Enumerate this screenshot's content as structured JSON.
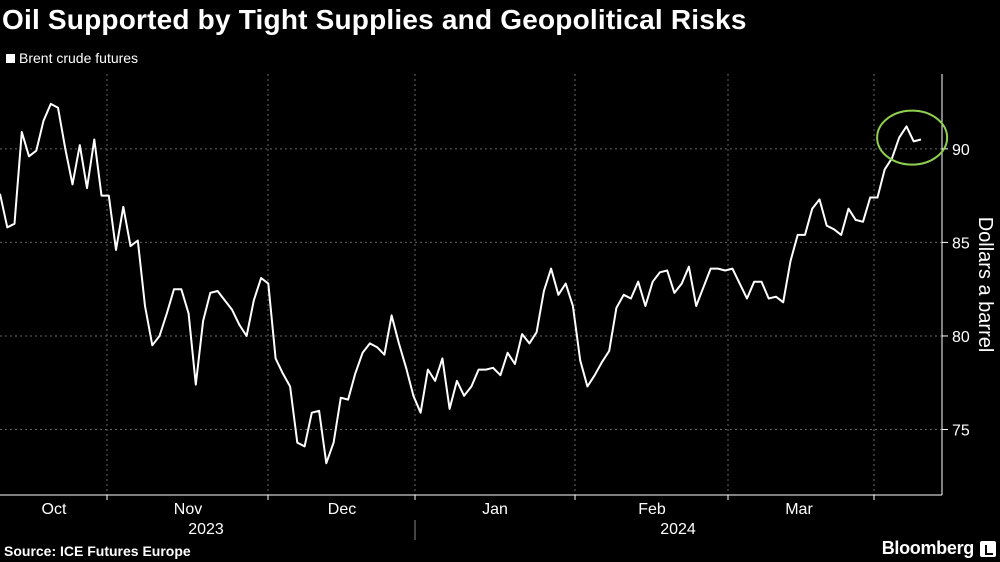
{
  "header": {
    "title": "Oil Supported by Tight Supplies and Geopolitical Risks"
  },
  "footer": {
    "source": "Source: ICE Futures Europe",
    "brand": "Bloomberg"
  },
  "chart_data": {
    "type": "line",
    "title": "Oil Supported by Tight Supplies and Geopolitical Risks",
    "ylabel": "Dollars a barrel",
    "ylim": [
      71.5,
      94
    ],
    "y_ticks": [
      75,
      80,
      85,
      90
    ],
    "y_axis_side": "right",
    "grid": true,
    "legend_position": "top-left",
    "x_month_labels": [
      "Oct",
      "Nov",
      "Dec",
      "Jan",
      "Feb",
      "Mar"
    ],
    "x_year_labels": [
      "2023",
      "2024"
    ],
    "colors": {
      "background": "#000000",
      "line": "#ffffff",
      "highlight_circle": "#8fd14f",
      "grid": "#666666"
    },
    "annotation": {
      "type": "circle",
      "around": "latest values"
    },
    "series": [
      {
        "name": "Brent crude futures",
        "values": [
          87.6,
          85.8,
          86.0,
          90.9,
          89.6,
          89.9,
          91.5,
          92.4,
          92.2,
          90.0,
          88.1,
          90.2,
          87.9,
          90.5,
          87.5,
          87.5,
          84.6,
          86.9,
          84.8,
          85.1,
          81.6,
          79.5,
          80.0,
          81.2,
          82.5,
          82.5,
          81.2,
          77.4,
          80.8,
          82.3,
          82.4,
          81.9,
          81.4,
          80.6,
          80.0,
          81.9,
          83.1,
          82.8,
          78.8,
          78.0,
          77.3,
          74.3,
          74.1,
          75.9,
          76.0,
          73.2,
          74.3,
          76.7,
          76.6,
          78.0,
          79.1,
          79.6,
          79.4,
          79.0,
          81.1,
          79.6,
          78.3,
          76.8,
          75.9,
          78.2,
          77.6,
          78.8,
          76.1,
          77.6,
          76.8,
          77.3,
          78.2,
          78.2,
          78.3,
          77.9,
          79.1,
          78.5,
          80.1,
          79.6,
          80.2,
          82.4,
          83.6,
          82.2,
          82.8,
          81.6,
          78.7,
          77.3,
          77.9,
          78.6,
          79.2,
          81.5,
          82.2,
          82.0,
          82.9,
          81.6,
          82.9,
          83.4,
          83.5,
          82.3,
          82.8,
          83.7,
          81.6,
          82.6,
          83.6,
          83.6,
          83.5,
          83.6,
          82.8,
          82.0,
          82.9,
          82.9,
          82.0,
          82.1,
          81.8,
          84.0,
          85.4,
          85.4,
          86.8,
          87.3,
          85.9,
          85.7,
          85.4,
          86.8,
          86.2,
          86.1,
          87.4,
          87.4,
          88.9,
          89.5,
          90.6,
          91.2,
          90.4,
          90.5
        ]
      }
    ]
  }
}
